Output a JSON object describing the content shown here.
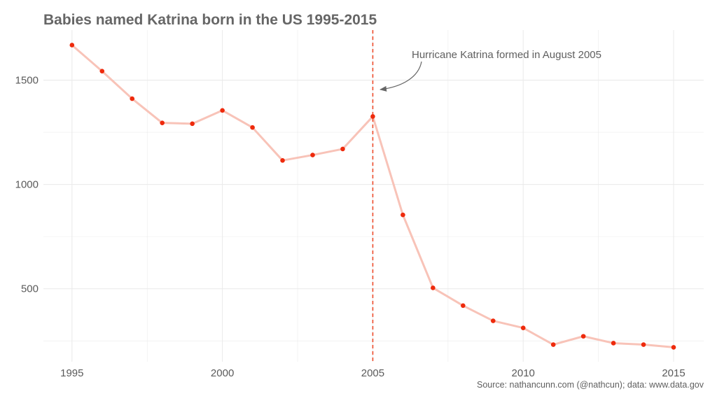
{
  "chart_data": {
    "type": "line",
    "title": "Babies named Katrina born in the US 1995-2015",
    "xlabel": "",
    "ylabel": "",
    "xlim": [
      1994.05,
      2016
    ],
    "ylim": [
      150,
      1740
    ],
    "x_ticks": [
      1995,
      2000,
      2005,
      2010,
      2015
    ],
    "y_ticks": [
      500,
      1000,
      1500
    ],
    "grid": true,
    "series": [
      {
        "name": "Katrina",
        "x": [
          1995,
          1996,
          1997,
          1998,
          1999,
          2000,
          2001,
          2002,
          2003,
          2004,
          2005,
          2006,
          2007,
          2008,
          2009,
          2010,
          2011,
          2012,
          2013,
          2014,
          2015
        ],
        "values": [
          1668,
          1543,
          1411,
          1295,
          1291,
          1355,
          1273,
          1115,
          1141,
          1170,
          1326,
          854,
          504,
          419,
          346,
          312,
          232,
          272,
          239,
          232,
          219
        ]
      }
    ],
    "vline": {
      "x": 2005,
      "color": "#ee4b2b",
      "style": "dashed"
    },
    "annotation": {
      "text": "Hurricane Katrina formed in August 2005",
      "x": 2006.3,
      "y": 1615
    },
    "caption": "Source: nathancunn.com (@nathcun); data: www.data.gov",
    "colors": {
      "line": "#f8c3b8",
      "point": "#ee2a0c",
      "vline": "#ee4b2b",
      "grid": "#ebebeb",
      "text": "#666666"
    }
  }
}
